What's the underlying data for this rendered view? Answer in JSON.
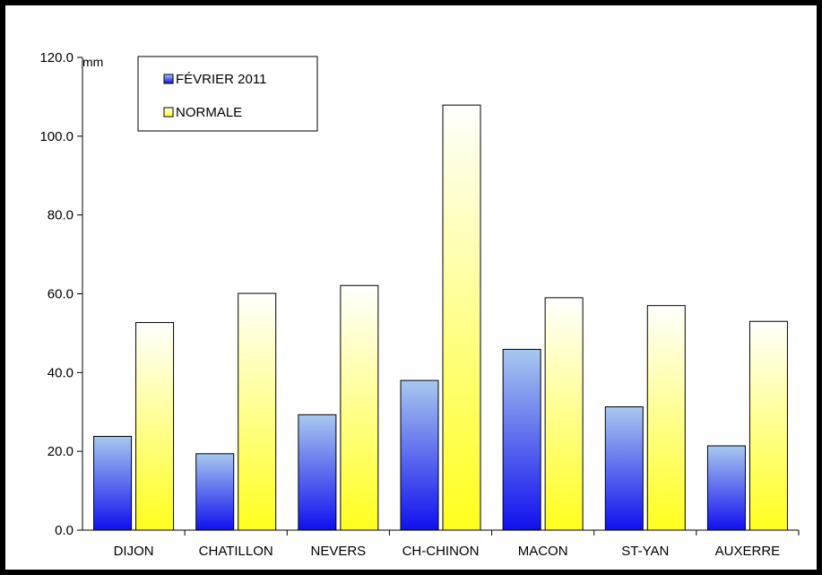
{
  "chart_data": {
    "type": "bar",
    "title": "",
    "xlabel": "",
    "ylabel": "mm",
    "ylim": [
      0,
      120
    ],
    "yticks": [
      "0.0",
      "20.0",
      "40.0",
      "60.0",
      "80.0",
      "100.0",
      "120.0"
    ],
    "categories": [
      "DIJON",
      "CHATILLON",
      "NEVERS",
      "CH-CHINON",
      "MACON",
      "ST-YAN",
      "AUXERRE"
    ],
    "series": [
      {
        "name": "FÉVRIER 2011",
        "values": [
          23.8,
          19.4,
          29.3,
          38.0,
          45.9,
          31.3,
          21.4
        ],
        "color_top": "#a9c8ee",
        "color_bottom": "#1010ee"
      },
      {
        "name": "NORMALE",
        "values": [
          52.7,
          60.1,
          62.1,
          107.9,
          59.0,
          57.0,
          53.0
        ],
        "color_top": "#ffffff",
        "color_bottom": "#ffff1e"
      }
    ],
    "grid": false,
    "legend_position": "top-left"
  }
}
